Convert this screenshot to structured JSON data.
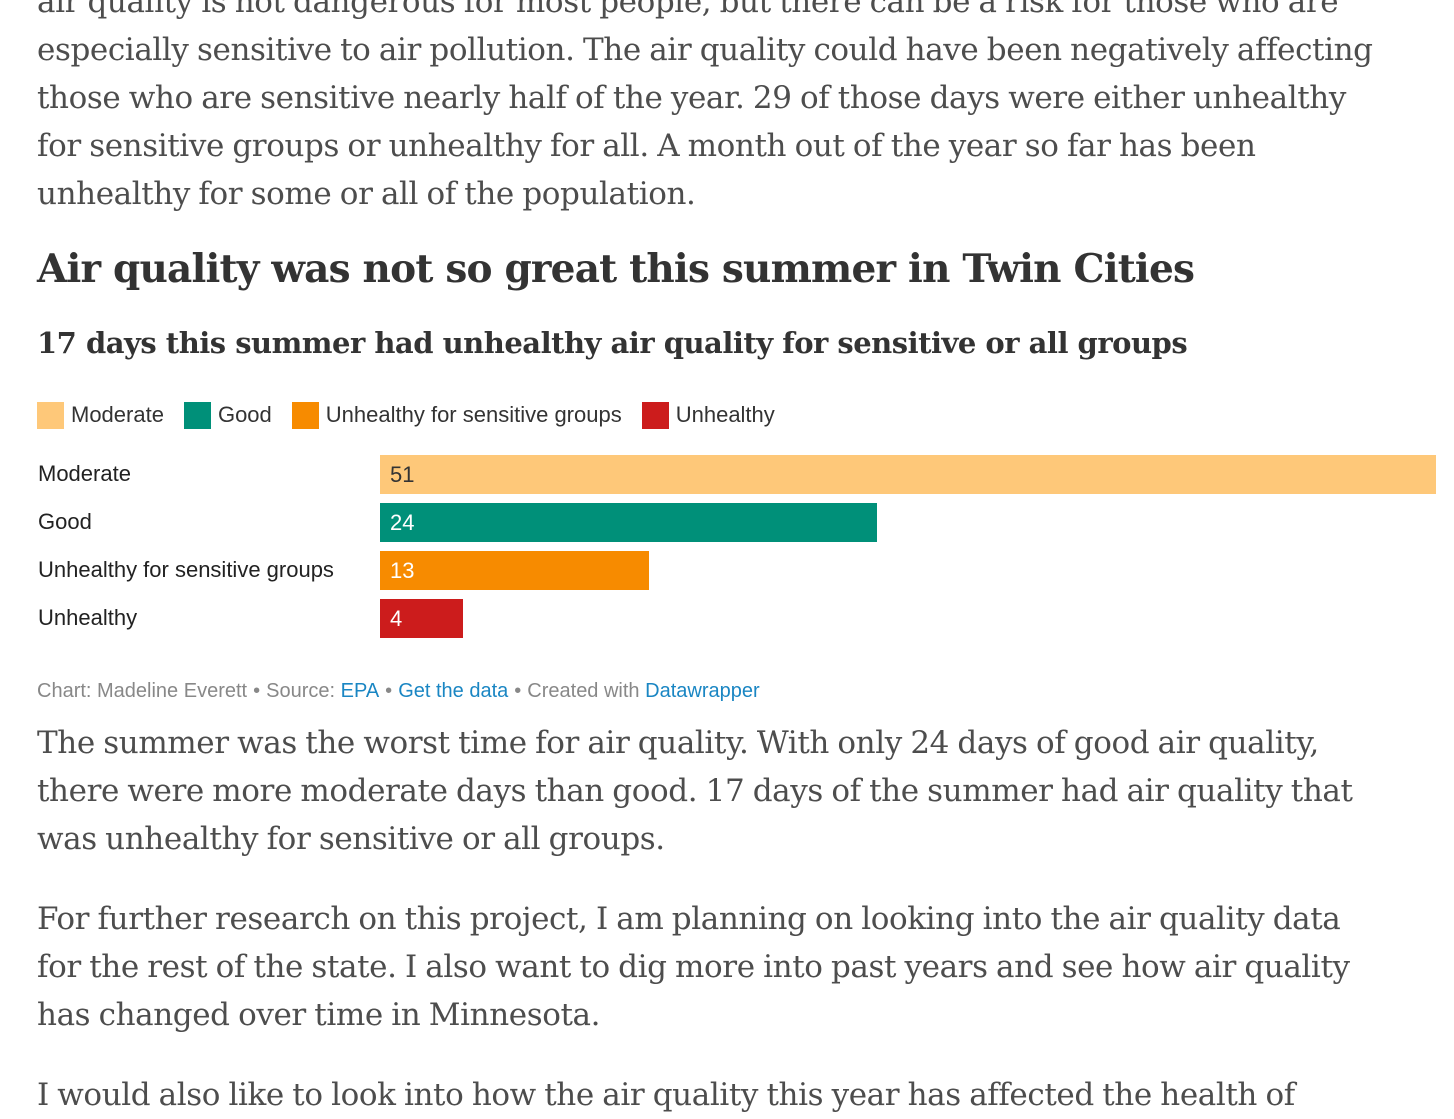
{
  "article": {
    "intro_lines": [
      "air quality is not dangerous for most people, but there can be a risk for those who are",
      "especially sensitive to air pollution. The air quality could have been negatively affecting",
      "those who are sensitive nearly half of the year. 29 of those days were either unhealthy",
      "for sensitive groups or unhealthy for all. A month out of the year so far has been",
      "unhealthy for some or all of the population."
    ],
    "summer_lines": [
      "The summer was the worst time for air quality. With only 24 days of good air quality,",
      "there were more moderate days than good. 17 days of the summer had air quality that",
      "was unhealthy for sensitive or all groups."
    ],
    "research_lines": [
      "For further research on this project, I am planning on looking into the air quality data",
      "for the rest of the state. I also want to dig more into past years and see how air quality",
      "has changed over time in Minnesota."
    ],
    "cut_line": "I would also like to look into how the air quality this year has affected the health of"
  },
  "chart_data": {
    "type": "bar",
    "title": "Air quality was not so great this summer in Twin Cities",
    "subtitle": "17 days this summer had unhealthy air quality for sensitive or all groups",
    "categories": [
      "Moderate",
      "Good",
      "Unhealthy for sensitive groups",
      "Unhealthy"
    ],
    "values": [
      51,
      24,
      13,
      4
    ],
    "colors": [
      "#fec879",
      "#009079",
      "#f78b00",
      "#cc1c1c"
    ],
    "value_label_colors": [
      "#333333",
      "#ffffff",
      "#ffffff",
      "#ffffff"
    ],
    "xlim": [
      0,
      51
    ],
    "legend": {
      "placement": "top-left",
      "entries": [
        "Moderate",
        "Good",
        "Unhealthy for sensitive groups",
        "Unhealthy"
      ]
    },
    "grid": false
  },
  "footer": {
    "chart_credit": "Chart: Madeline Everett",
    "source_label": "Source:",
    "source_link": "EPA",
    "get_data": "Get the data",
    "created_with": "Created with",
    "tool": "Datawrapper",
    "separator": "•"
  }
}
